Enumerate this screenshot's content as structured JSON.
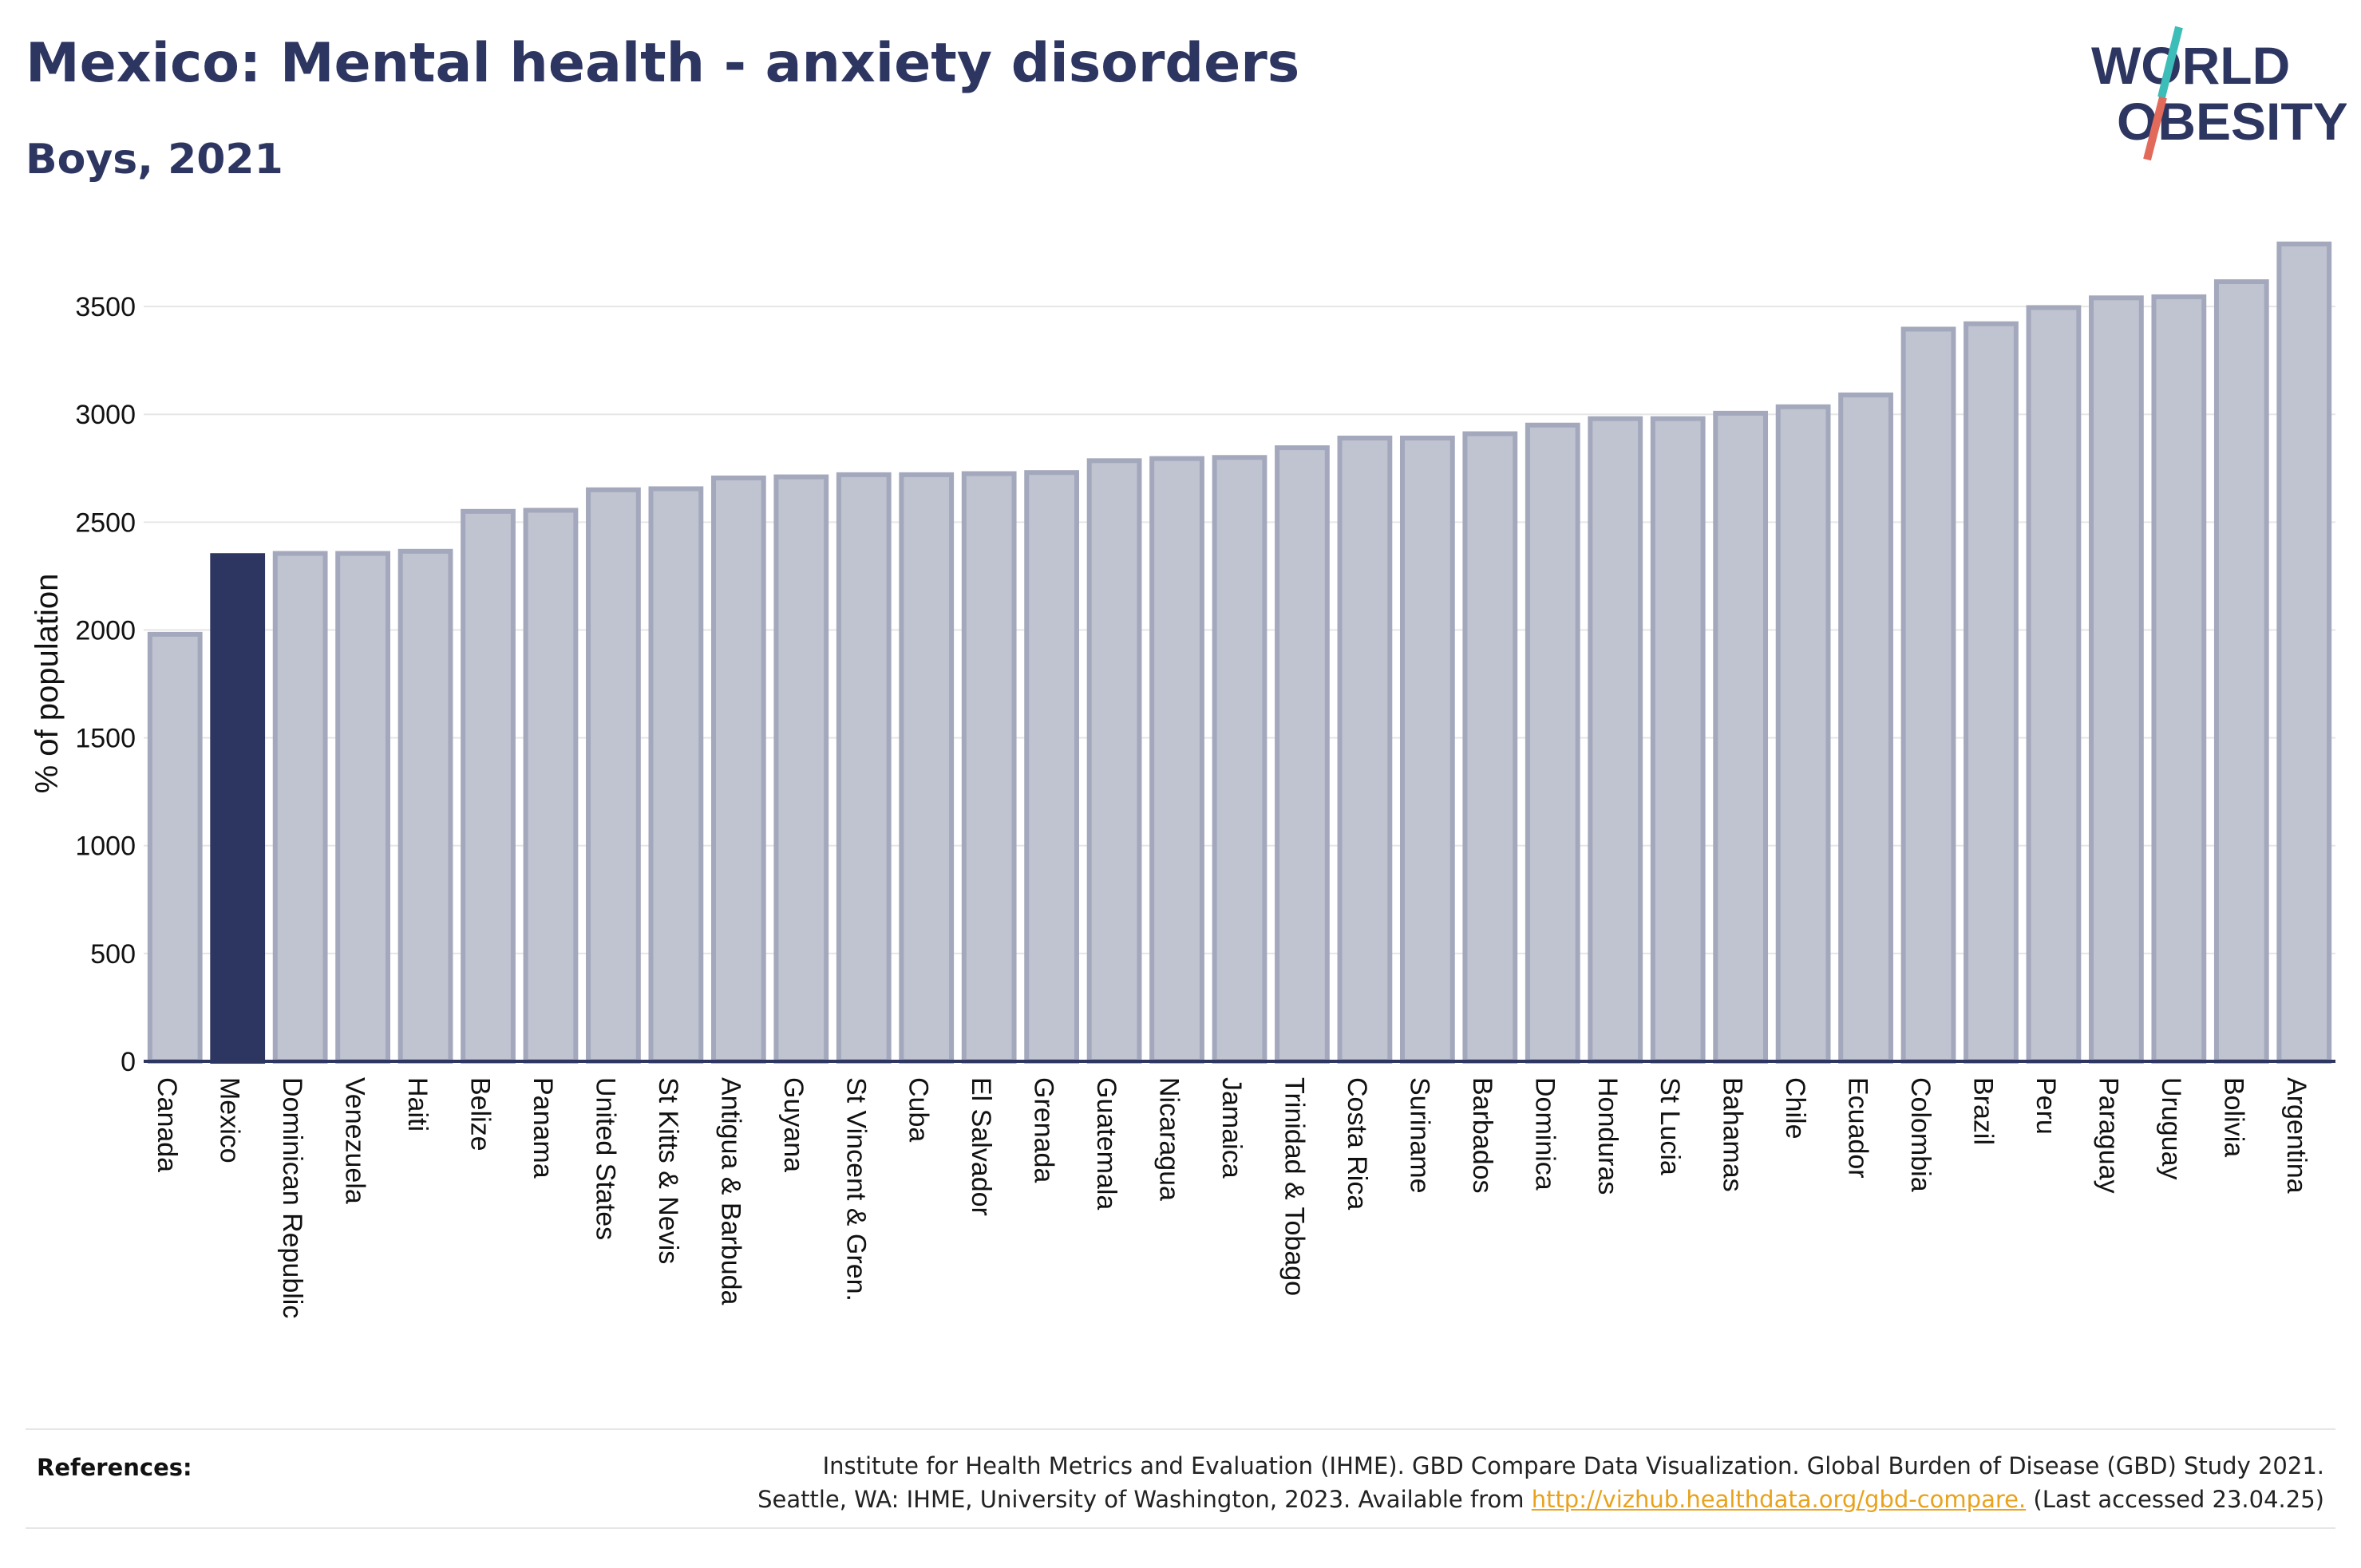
{
  "header": {
    "title": "Mexico: Mental health - anxiety disorders",
    "subtitle": "Boys, 2021"
  },
  "logo": {
    "line1": "WORLD",
    "line2": "OBESITY",
    "text_color": "#2d3561",
    "slash_colors": [
      "#3dbdb8",
      "#e26a5a"
    ]
  },
  "references": {
    "label": "References:",
    "line1": "Institute for Health Metrics and Evaluation (IHME). GBD Compare Data Visualization. Global Burden of Disease (GBD) Study 2021.",
    "line2_before": "Seattle, WA: IHME, University of Washington, 2023. Available from ",
    "link": "http://vizhub.healthdata.org/gbd-compare.",
    "line2_after": " (Last accessed 23.04.25)"
  },
  "chart_data": {
    "type": "bar",
    "ylabel": "% of population",
    "xlabel": "",
    "ylim": [
      0,
      3800
    ],
    "yticks": [
      0,
      500,
      1000,
      1500,
      2000,
      2500,
      3000,
      3500
    ],
    "grid": true,
    "highlight": "Mexico",
    "colors": {
      "highlight": "#2d3561",
      "bar_fill": "#c0c3d0",
      "bar_border": "#a3a8bc",
      "grid": "#e6e6e6",
      "axis": "#2d3561"
    },
    "categories": [
      "Canada",
      "Mexico",
      "Dominican Republic",
      "Venezuela",
      "Haiti",
      "Belize",
      "Panama",
      "United States",
      "St Kitts & Nevis",
      "Antigua & Barbuda",
      "Guyana",
      "St Vincent & Gren.",
      "Cuba",
      "El Salvador",
      "Grenada",
      "Guatemala",
      "Nicaragua",
      "Jamaica",
      "Trinidad & Tobago",
      "Costa Rica",
      "Suriname",
      "Barbados",
      "Dominica",
      "Honduras",
      "St Lucia",
      "Bahamas",
      "Chile",
      "Ecuador",
      "Colombia",
      "Brazil",
      "Peru",
      "Paraguay",
      "Uruguay",
      "Bolivia",
      "Argentina"
    ],
    "values": [
      1980,
      2345,
      2355,
      2355,
      2365,
      2550,
      2555,
      2650,
      2655,
      2705,
      2710,
      2720,
      2720,
      2725,
      2730,
      2785,
      2795,
      2800,
      2845,
      2890,
      2890,
      2910,
      2950,
      2980,
      2980,
      3005,
      3035,
      3090,
      3395,
      3420,
      3495,
      3540,
      3545,
      3615,
      3790
    ]
  }
}
